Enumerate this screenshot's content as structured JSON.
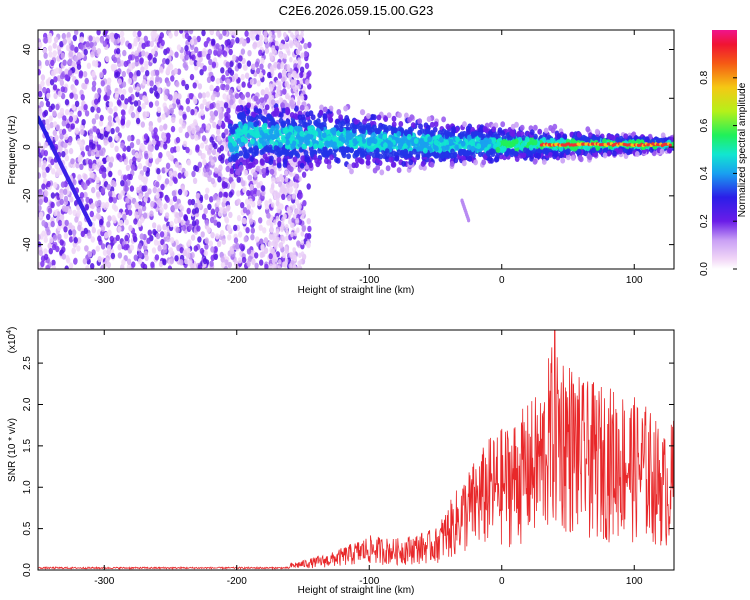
{
  "title": "C2E6.2026.059.15.00.G23",
  "chart_data": [
    {
      "type": "heatmap",
      "title": "C2E6.2026.059.15.00.G23",
      "xlabel": "Height of straight line (km)",
      "ylabel": "Frequency (Hz)",
      "xlim": [
        -350,
        130
      ],
      "ylim": [
        -50,
        48
      ],
      "xticks": [
        -300,
        -200,
        -100,
        0,
        100
      ],
      "yticks": [
        -40,
        -20,
        0,
        20,
        40
      ],
      "colorbar": {
        "label": "Normalized spectral amplitude",
        "range": [
          0.0,
          1.0
        ],
        "ticks": [
          "0.0",
          "0.2",
          "0.4",
          "0.6",
          "0.8"
        ],
        "tick_values": [
          0.0,
          0.2,
          0.4,
          0.6,
          0.8
        ],
        "colormap": "rainbow"
      },
      "features": {
        "signal_trend": [
          {
            "x": -200,
            "freq": 5
          },
          {
            "x": -150,
            "freq": 4
          },
          {
            "x": -100,
            "freq": 2.5
          },
          {
            "x": -50,
            "freq": 1.5
          },
          {
            "x": 0,
            "freq": 1
          },
          {
            "x": 50,
            "freq": 1
          },
          {
            "x": 130,
            "freq": 1
          }
        ],
        "diagonal_streak": {
          "start": {
            "x": -350,
            "freq": 12
          },
          "end": {
            "x": -310,
            "freq": -32
          }
        },
        "minor_streak": {
          "start": {
            "x": -30,
            "freq": -22
          },
          "end": {
            "x": -25,
            "freq": -30
          }
        }
      }
    },
    {
      "type": "line",
      "xlabel": "Height of straight line (km)",
      "ylabel": "SNR (10 * v/v)",
      "scale_label": "(x10",
      "scale_exp": "4",
      "scale_close": ")",
      "xlim": [
        -350,
        130
      ],
      "ylim": [
        0,
        2.9
      ],
      "xticks": [
        -300,
        -200,
        -100,
        0,
        100
      ],
      "yticks": [
        "0.0",
        "0.5",
        "1.0",
        "1.5",
        "2.0",
        "2.5"
      ],
      "ytick_values": [
        0.0,
        0.5,
        1.0,
        1.5,
        2.0,
        2.5
      ],
      "color": "#e8282a",
      "envelope": [
        {
          "x": -350,
          "y": 0.02
        },
        {
          "x": -200,
          "y": 0.03
        },
        {
          "x": -160,
          "y": 0.08
        },
        {
          "x": -130,
          "y": 0.2
        },
        {
          "x": -100,
          "y": 0.42
        },
        {
          "x": -80,
          "y": 0.38
        },
        {
          "x": -50,
          "y": 0.5
        },
        {
          "x": -30,
          "y": 1.1
        },
        {
          "x": -10,
          "y": 1.6
        },
        {
          "x": 10,
          "y": 1.85
        },
        {
          "x": 30,
          "y": 2.2
        },
        {
          "x": 40,
          "y": 2.9
        },
        {
          "x": 60,
          "y": 2.3
        },
        {
          "x": 90,
          "y": 2.2
        },
        {
          "x": 110,
          "y": 2.0
        },
        {
          "x": 125,
          "y": 1.6
        },
        {
          "x": 130,
          "y": 1.9
        }
      ]
    }
  ]
}
